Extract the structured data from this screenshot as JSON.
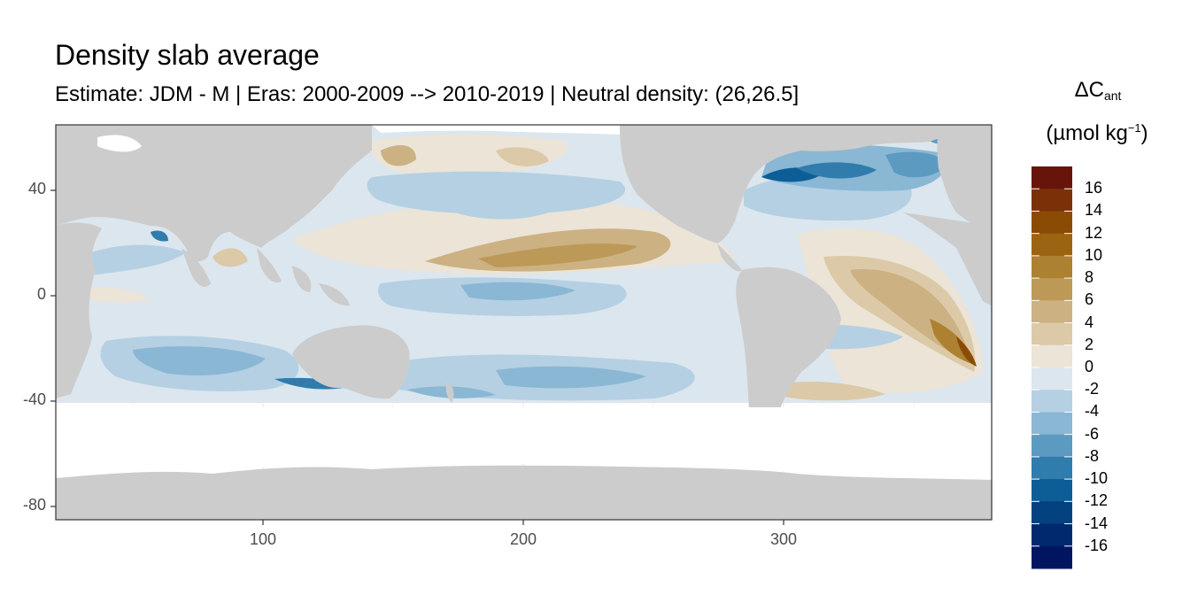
{
  "chart_data": {
    "type": "heatmap",
    "title": "Density slab average",
    "subtitle": "Estimate: JDM - M | Eras: 2000-2009 --> 2010-2019 | Neutral density: (26,26.5]",
    "xlabel": "",
    "ylabel": "",
    "xlim": [
      20,
      380
    ],
    "ylim": [
      -85,
      65
    ],
    "x_ticks": [
      100,
      200,
      300
    ],
    "y_ticks": [
      40,
      0,
      -40,
      -80
    ],
    "x_tick_labels": [
      "100",
      "200",
      "300"
    ],
    "y_tick_labels": [
      "40",
      "0",
      "-40",
      "-80"
    ],
    "legend": {
      "title_main": "ΔC",
      "title_sub": "ant",
      "title_unit_prefix": "(µmol kg",
      "title_unit_sup": "−1",
      "title_unit_suffix": ")",
      "bins": [
        {
          "range": [
            16,
            18
          ],
          "color": "#67150a"
        },
        {
          "range": [
            14,
            16
          ],
          "color": "#7a3107"
        },
        {
          "range": [
            12,
            14
          ],
          "color": "#8a4b05"
        },
        {
          "range": [
            10,
            12
          ],
          "color": "#9a6413"
        },
        {
          "range": [
            8,
            10
          ],
          "color": "#ac8131"
        },
        {
          "range": [
            6,
            8
          ],
          "color": "#bd9958"
        },
        {
          "range": [
            4,
            6
          ],
          "color": "#ccb183"
        },
        {
          "range": [
            2,
            4
          ],
          "color": "#dcc9a7"
        },
        {
          "range": [
            0,
            2
          ],
          "color": "#ebe4d7"
        },
        {
          "range": [
            -2,
            0
          ],
          "color": "#dce6ee"
        },
        {
          "range": [
            -4,
            -2
          ],
          "color": "#b5d0e3"
        },
        {
          "range": [
            -6,
            -4
          ],
          "color": "#8ab7d4"
        },
        {
          "range": [
            -8,
            -6
          ],
          "color": "#5c9ac2"
        },
        {
          "range": [
            -10,
            -8
          ],
          "color": "#2f7cad"
        },
        {
          "range": [
            -12,
            -10
          ],
          "color": "#0d5e96"
        },
        {
          "range": [
            -14,
            -12
          ],
          "color": "#03417f"
        },
        {
          "range": [
            -16,
            -14
          ],
          "color": "#012a6e"
        },
        {
          "range": [
            -18,
            -16
          ],
          "color": "#001560"
        }
      ],
      "labels": [
        "16",
        "14",
        "12",
        "10",
        "8",
        "6",
        "4",
        "2",
        "0",
        "-2",
        "-4",
        "-6",
        "-8",
        "-10",
        "-12",
        "-14",
        "-16"
      ]
    },
    "land_color": "#cccccc",
    "no_data_color": "#ffffff",
    "grid": true,
    "data_southern_limit_lat": -40
  }
}
